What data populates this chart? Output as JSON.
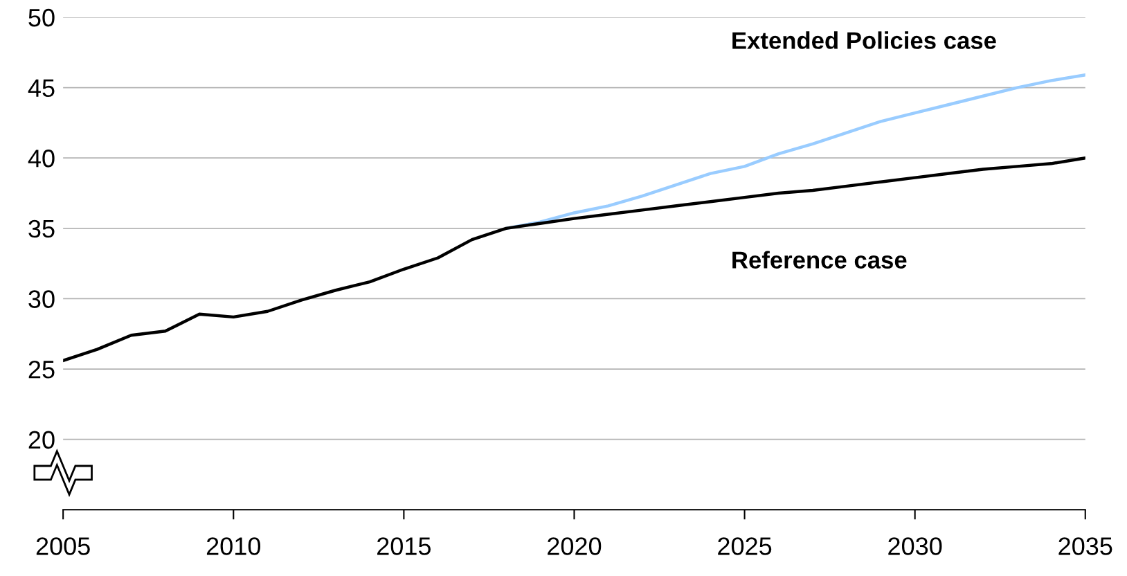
{
  "chart_data": {
    "type": "line",
    "x": [
      2005,
      2006,
      2007,
      2008,
      2009,
      2010,
      2011,
      2012,
      2013,
      2014,
      2015,
      2016,
      2017,
      2018,
      2019,
      2020,
      2021,
      2022,
      2023,
      2024,
      2025,
      2026,
      2027,
      2028,
      2029,
      2030,
      2031,
      2032,
      2033,
      2034,
      2035
    ],
    "series": [
      {
        "name": "Extended Policies case",
        "color": "#99ccff",
        "x": [
          2018,
          2019,
          2020,
          2021,
          2022,
          2023,
          2024,
          2025,
          2026,
          2027,
          2028,
          2029,
          2030,
          2031,
          2032,
          2033,
          2034,
          2035
        ],
        "values": [
          35.0,
          35.45,
          36.1,
          36.6,
          37.3,
          38.1,
          38.9,
          39.4,
          40.3,
          41.0,
          41.8,
          42.6,
          43.2,
          43.8,
          44.4,
          45.0,
          45.5,
          45.9
        ]
      },
      {
        "name": "Reference case",
        "color": "#000000",
        "values": [
          25.6,
          26.4,
          27.4,
          27.7,
          28.9,
          28.7,
          29.1,
          29.9,
          30.6,
          31.2,
          32.1,
          32.9,
          34.2,
          35.0,
          35.35,
          35.7,
          36.0,
          36.3,
          36.6,
          36.9,
          37.2,
          37.5,
          37.7,
          38.0,
          38.3,
          38.6,
          38.9,
          39.2,
          39.4,
          39.6,
          40.0
        ]
      }
    ],
    "xlim": [
      2005,
      2035
    ],
    "xticks": [
      2005,
      2010,
      2015,
      2020,
      2025,
      2030,
      2035
    ],
    "ylim": [
      15,
      50
    ],
    "yticks": [
      {
        "value": 15,
        "label": null
      },
      20,
      25,
      30,
      35,
      40,
      45,
      50
    ],
    "grid": "y",
    "line_style": "solid",
    "marker": "none",
    "legend": false
  }
}
